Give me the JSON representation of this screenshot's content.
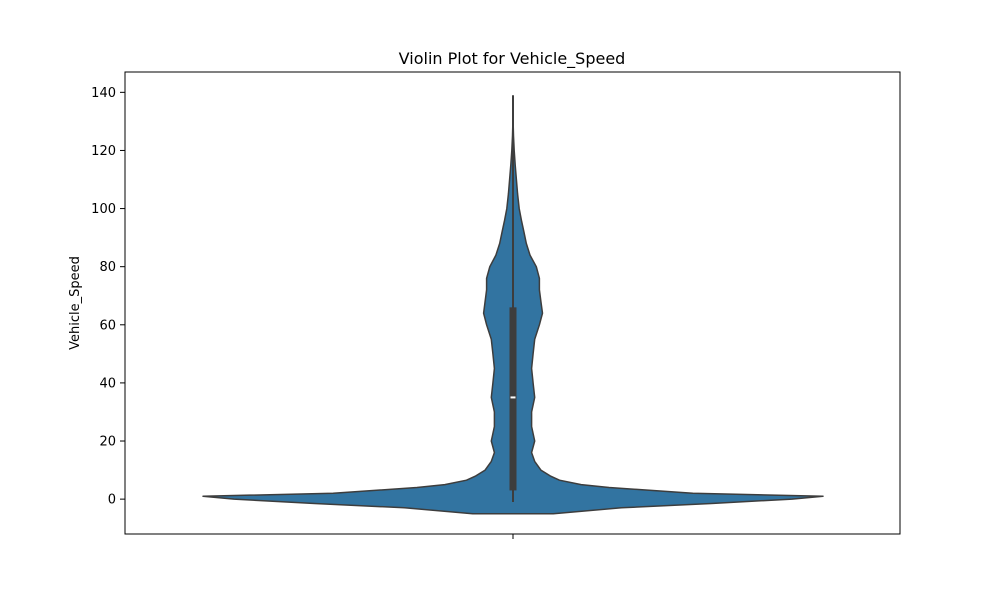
{
  "chart_data": {
    "type": "violin",
    "title": "Violin Plot for Vehicle_Speed",
    "xlabel": "",
    "ylabel": "Vehicle_Speed",
    "ylim": [
      -12,
      147
    ],
    "yticks": [
      0,
      20,
      40,
      60,
      80,
      100,
      120,
      140
    ],
    "grid": false,
    "color": "#3274a1",
    "edge_color": "#3d3d3d",
    "box_color": "#3d3d3d",
    "median_color": "#ffffff",
    "quartiles": {
      "q1": 3,
      "median": 35,
      "q3": 66
    },
    "whisker": {
      "low": -1,
      "high": 139
    },
    "density_profile": [
      [
        -5.0,
        0.13
      ],
      [
        -3.0,
        0.35
      ],
      [
        -1.5,
        0.64
      ],
      [
        0.0,
        0.9
      ],
      [
        1.0,
        1.0
      ],
      [
        2.0,
        0.58
      ],
      [
        4.0,
        0.31
      ],
      [
        5.0,
        0.22
      ],
      [
        6.5,
        0.15
      ],
      [
        8.0,
        0.12
      ],
      [
        10.0,
        0.09
      ],
      [
        13.0,
        0.07
      ],
      [
        16.0,
        0.06
      ],
      [
        20.0,
        0.07
      ],
      [
        25.0,
        0.06
      ],
      [
        30.0,
        0.06
      ],
      [
        35.0,
        0.07
      ],
      [
        40.0,
        0.065
      ],
      [
        45.0,
        0.06
      ],
      [
        50.0,
        0.065
      ],
      [
        55.0,
        0.07
      ],
      [
        60.0,
        0.085
      ],
      [
        64.0,
        0.095
      ],
      [
        68.0,
        0.09
      ],
      [
        72.0,
        0.085
      ],
      [
        76.0,
        0.085
      ],
      [
        80.0,
        0.075
      ],
      [
        84.0,
        0.055
      ],
      [
        88.0,
        0.043
      ],
      [
        92.0,
        0.035
      ],
      [
        96.0,
        0.027
      ],
      [
        100.0,
        0.02
      ],
      [
        105.0,
        0.015
      ],
      [
        110.0,
        0.011
      ],
      [
        115.0,
        0.007
      ],
      [
        120.0,
        0.004
      ],
      [
        125.0,
        0.0015
      ],
      [
        130.0,
        0.0004
      ],
      [
        134.0,
        0.0
      ]
    ]
  }
}
